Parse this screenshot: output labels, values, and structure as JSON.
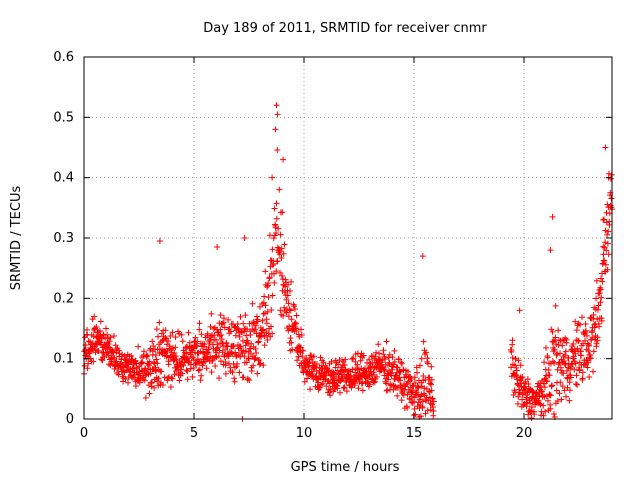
{
  "chart_data": {
    "type": "scatter",
    "title": "Day 189 of 2011, SRMTID for receiver cnmr",
    "xlabel": "GPS time / hours",
    "ylabel": "SRMTID / TECUs",
    "xlim": [
      0,
      24
    ],
    "ylim": [
      0,
      0.6
    ],
    "x_ticks": [
      0,
      5,
      10,
      15,
      20
    ],
    "x_tick_labels": [
      "0",
      "5",
      "10",
      "15",
      "20"
    ],
    "y_ticks": [
      0,
      0.1,
      0.2,
      0.3,
      0.4,
      0.5,
      0.6
    ],
    "y_tick_labels": [
      "0",
      "0.1",
      "0.2",
      "0.3",
      "0.4",
      "0.5",
      "0.6"
    ],
    "grid": true,
    "marker": "plus",
    "color": "#ff0000",
    "sampling_minutes": 0.75,
    "series": [
      {
        "name": "SRMTID",
        "envelope": {
          "x": [
            0,
            0.5,
            1,
            2,
            3,
            3.5,
            4,
            5,
            6,
            7,
            7.5,
            8,
            8.5,
            8.8,
            9.2,
            9.6,
            10,
            11,
            12,
            13,
            13.5,
            14,
            14.5,
            15,
            15.5,
            15.9
          ],
          "center": [
            0.11,
            0.13,
            0.12,
            0.08,
            0.08,
            0.1,
            0.1,
            0.11,
            0.12,
            0.12,
            0.12,
            0.13,
            0.22,
            0.3,
            0.2,
            0.14,
            0.09,
            0.07,
            0.07,
            0.08,
            0.09,
            0.08,
            0.06,
            0.04,
            0.06,
            0.03
          ],
          "spread": [
            0.05,
            0.05,
            0.05,
            0.05,
            0.06,
            0.09,
            0.06,
            0.06,
            0.07,
            0.08,
            0.09,
            0.09,
            0.14,
            0.18,
            0.11,
            0.06,
            0.04,
            0.04,
            0.04,
            0.05,
            0.05,
            0.05,
            0.05,
            0.05,
            0.1,
            0.05
          ]
        },
        "peak_points": [
          {
            "x": 8.75,
            "y": 0.52
          },
          {
            "x": 8.8,
            "y": 0.505
          },
          {
            "x": 8.7,
            "y": 0.48
          },
          {
            "x": 9.05,
            "y": 0.43
          },
          {
            "x": 8.55,
            "y": 0.4
          },
          {
            "x": 3.45,
            "y": 0.295
          },
          {
            "x": 7.3,
            "y": 0.3
          },
          {
            "x": 6.05,
            "y": 0.285
          },
          {
            "x": 15.4,
            "y": 0.27
          },
          {
            "x": 7.2,
            "y": 0.0
          }
        ]
      },
      {
        "name": "SRMTID",
        "envelope": {
          "x": [
            19.4,
            19.7,
            20,
            20.5,
            21,
            21.3,
            21.6,
            22,
            22.5,
            23,
            23.4,
            23.7,
            24
          ],
          "center": [
            0.1,
            0.06,
            0.04,
            0.03,
            0.05,
            0.09,
            0.09,
            0.09,
            0.11,
            0.12,
            0.17,
            0.3,
            0.37
          ],
          "spread": [
            0.09,
            0.07,
            0.05,
            0.04,
            0.08,
            0.12,
            0.1,
            0.08,
            0.08,
            0.08,
            0.11,
            0.12,
            0.08
          ]
        },
        "peak_points": [
          {
            "x": 23.7,
            "y": 0.45
          },
          {
            "x": 23.85,
            "y": 0.4
          },
          {
            "x": 21.3,
            "y": 0.335
          },
          {
            "x": 23.6,
            "y": 0.33
          },
          {
            "x": 21.2,
            "y": 0.28
          },
          {
            "x": 19.8,
            "y": 0.18
          }
        ]
      }
    ]
  }
}
